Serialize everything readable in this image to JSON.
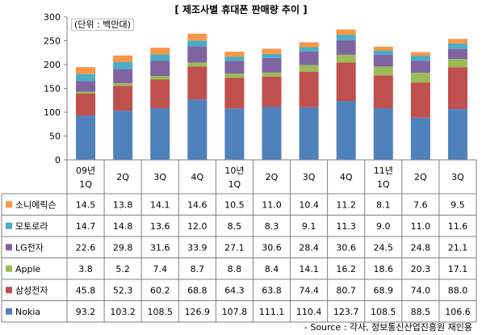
{
  "title": "[ 제조사별 휴대폰 판매량 추이 ]",
  "unit_note": "(단위 : 백만대)",
  "source": "- Source : 각사, 정보통신산업진흥원 재인용",
  "chart_data": {
    "type": "bar",
    "stacked": true,
    "categories": [
      "09년 1Q",
      "2Q",
      "3Q",
      "4Q",
      "10년 1Q",
      "2Q",
      "3Q",
      "4Q",
      "11년 1Q",
      "2Q",
      "3Q"
    ],
    "ylim": [
      0,
      300
    ],
    "yticks": [
      0,
      50,
      100,
      150,
      200,
      250,
      300
    ],
    "grid": false,
    "series": [
      {
        "name": "Nokia",
        "color": "#4F81BD",
        "values": [
          93.2,
          103.2,
          108.5,
          126.9,
          107.8,
          111.1,
          110.4,
          123.7,
          108.5,
          88.5,
          106.6
        ]
      },
      {
        "name": "삼성전자",
        "color": "#C0504D",
        "values": [
          45.8,
          52.3,
          60.2,
          68.8,
          64.3,
          63.8,
          74.4,
          80.7,
          68.9,
          74.0,
          88.0
        ]
      },
      {
        "name": "Apple",
        "color": "#9BBB59",
        "values": [
          3.8,
          5.2,
          7.4,
          8.7,
          8.8,
          8.4,
          14.1,
          16.2,
          18.6,
          20.3,
          17.1
        ]
      },
      {
        "name": "LG전자",
        "color": "#8064A2",
        "values": [
          22.6,
          29.8,
          31.6,
          33.9,
          27.1,
          30.6,
          28.4,
          30.6,
          24.5,
          24.8,
          21.1
        ]
      },
      {
        "name": "모토로라",
        "color": "#4BACC6",
        "values": [
          14.7,
          14.8,
          13.6,
          12.0,
          8.5,
          8.3,
          9.1,
          11.3,
          9.0,
          11.0,
          11.6
        ]
      },
      {
        "name": "소니에릭슨",
        "color": "#F79646",
        "values": [
          14.5,
          13.8,
          14.1,
          14.6,
          10.5,
          11.0,
          10.4,
          11.2,
          8.1,
          7.6,
          9.5
        ]
      }
    ]
  }
}
